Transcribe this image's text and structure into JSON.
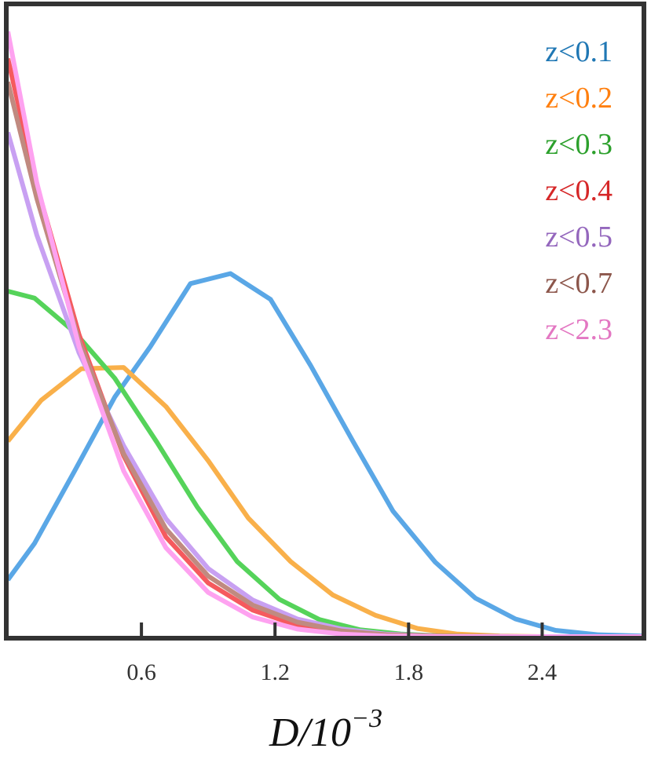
{
  "chart_data": {
    "type": "line",
    "xlabel": "D/10",
    "xlabel_exponent": "−3",
    "ylabel": "",
    "xlim": [
      0.0,
      2.85
    ],
    "ylim": [
      0.0,
      1.0
    ],
    "xticks": [
      0.6,
      1.2,
      1.8,
      2.4
    ],
    "xtick_labels": [
      "0.6",
      "1.2",
      "1.8",
      "2.4"
    ],
    "grid": false,
    "legend_position": "top-right",
    "series": [
      {
        "name": "z<0.1",
        "color": "#1f77b4",
        "line_color": "#5aa7e6",
        "x": [
          0.0,
          0.12,
          0.3,
          0.48,
          0.64,
          0.82,
          1.0,
          1.18,
          1.36,
          1.55,
          1.73,
          1.92,
          2.1,
          2.28,
          2.46,
          2.65,
          2.85
        ],
        "y": [
          0.09,
          0.148,
          0.263,
          0.38,
          0.46,
          0.56,
          0.576,
          0.535,
          0.43,
          0.31,
          0.199,
          0.118,
          0.061,
          0.028,
          0.01,
          0.003,
          0.001
        ]
      },
      {
        "name": "z<0.2",
        "color": "#ff7f0e",
        "line_color": "#f9b04a",
        "x": [
          0.0,
          0.15,
          0.33,
          0.52,
          0.71,
          0.9,
          1.08,
          1.27,
          1.46,
          1.65,
          1.84,
          2.02,
          2.21,
          2.4,
          2.6,
          2.85
        ],
        "y": [
          0.31,
          0.375,
          0.425,
          0.427,
          0.365,
          0.279,
          0.188,
          0.119,
          0.066,
          0.034,
          0.013,
          0.004,
          0.001,
          0.0,
          0.0,
          0.0
        ]
      },
      {
        "name": "z<0.3",
        "color": "#2ca02c",
        "line_color": "#55d35a",
        "x": [
          0.0,
          0.12,
          0.3,
          0.48,
          0.67,
          0.85,
          1.03,
          1.22,
          1.4,
          1.58,
          1.77,
          1.95,
          2.2,
          2.5,
          2.85
        ],
        "y": [
          0.548,
          0.537,
          0.483,
          0.41,
          0.308,
          0.206,
          0.119,
          0.059,
          0.027,
          0.011,
          0.004,
          0.001,
          0.0,
          0.0,
          0.0
        ]
      },
      {
        "name": "z<0.4",
        "color": "#d62728",
        "line_color": "#f55a5e",
        "x": [
          0.0,
          0.13,
          0.32,
          0.52,
          0.71,
          0.9,
          1.1,
          1.3,
          1.5,
          1.7,
          1.95,
          2.3,
          2.85
        ],
        "y": [
          0.917,
          0.716,
          0.479,
          0.287,
          0.158,
          0.085,
          0.042,
          0.018,
          0.007,
          0.002,
          0.0,
          0.0,
          0.0
        ]
      },
      {
        "name": "z<0.5",
        "color": "#9467bd",
        "line_color": "#c8a0f2",
        "x": [
          0.0,
          0.13,
          0.32,
          0.52,
          0.71,
          0.9,
          1.1,
          1.3,
          1.5,
          1.7,
          1.95,
          2.3,
          2.85
        ],
        "y": [
          0.8,
          0.637,
          0.45,
          0.303,
          0.187,
          0.108,
          0.058,
          0.028,
          0.012,
          0.004,
          0.001,
          0.0,
          0.0
        ]
      },
      {
        "name": "z<0.7",
        "color": "#8c564b",
        "line_color": "#c08a80",
        "x": [
          0.0,
          0.13,
          0.32,
          0.52,
          0.71,
          0.9,
          1.1,
          1.3,
          1.5,
          1.7,
          1.95,
          2.3,
          2.85
        ],
        "y": [
          0.88,
          0.695,
          0.47,
          0.29,
          0.171,
          0.096,
          0.05,
          0.023,
          0.009,
          0.003,
          0.001,
          0.0,
          0.0
        ]
      },
      {
        "name": "z<2.3",
        "color": "#e377c2",
        "line_color": "#fea2f0",
        "x": [
          0.0,
          0.13,
          0.32,
          0.52,
          0.71,
          0.9,
          1.1,
          1.3,
          1.5,
          1.7,
          1.95,
          2.3,
          2.85
        ],
        "y": [
          0.96,
          0.72,
          0.46,
          0.263,
          0.141,
          0.07,
          0.031,
          0.012,
          0.004,
          0.001,
          0.0,
          0.0,
          0.0
        ]
      }
    ]
  }
}
